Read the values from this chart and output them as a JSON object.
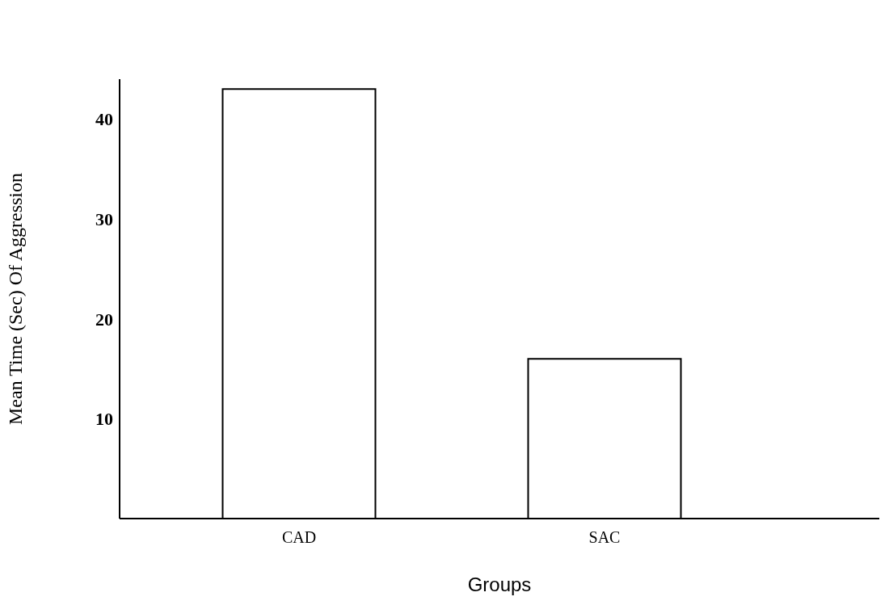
{
  "chart_data": {
    "type": "bar",
    "xlabel": "Groups",
    "ylabel": "Mean Time (Sec) Of Aggression",
    "categories": [
      "CAD",
      "SAC"
    ],
    "values": [
      43,
      16
    ],
    "color": "#ffffff",
    "ylim": [
      0,
      44
    ],
    "yticks": [
      10,
      20,
      30,
      40
    ],
    "grid": false
  }
}
